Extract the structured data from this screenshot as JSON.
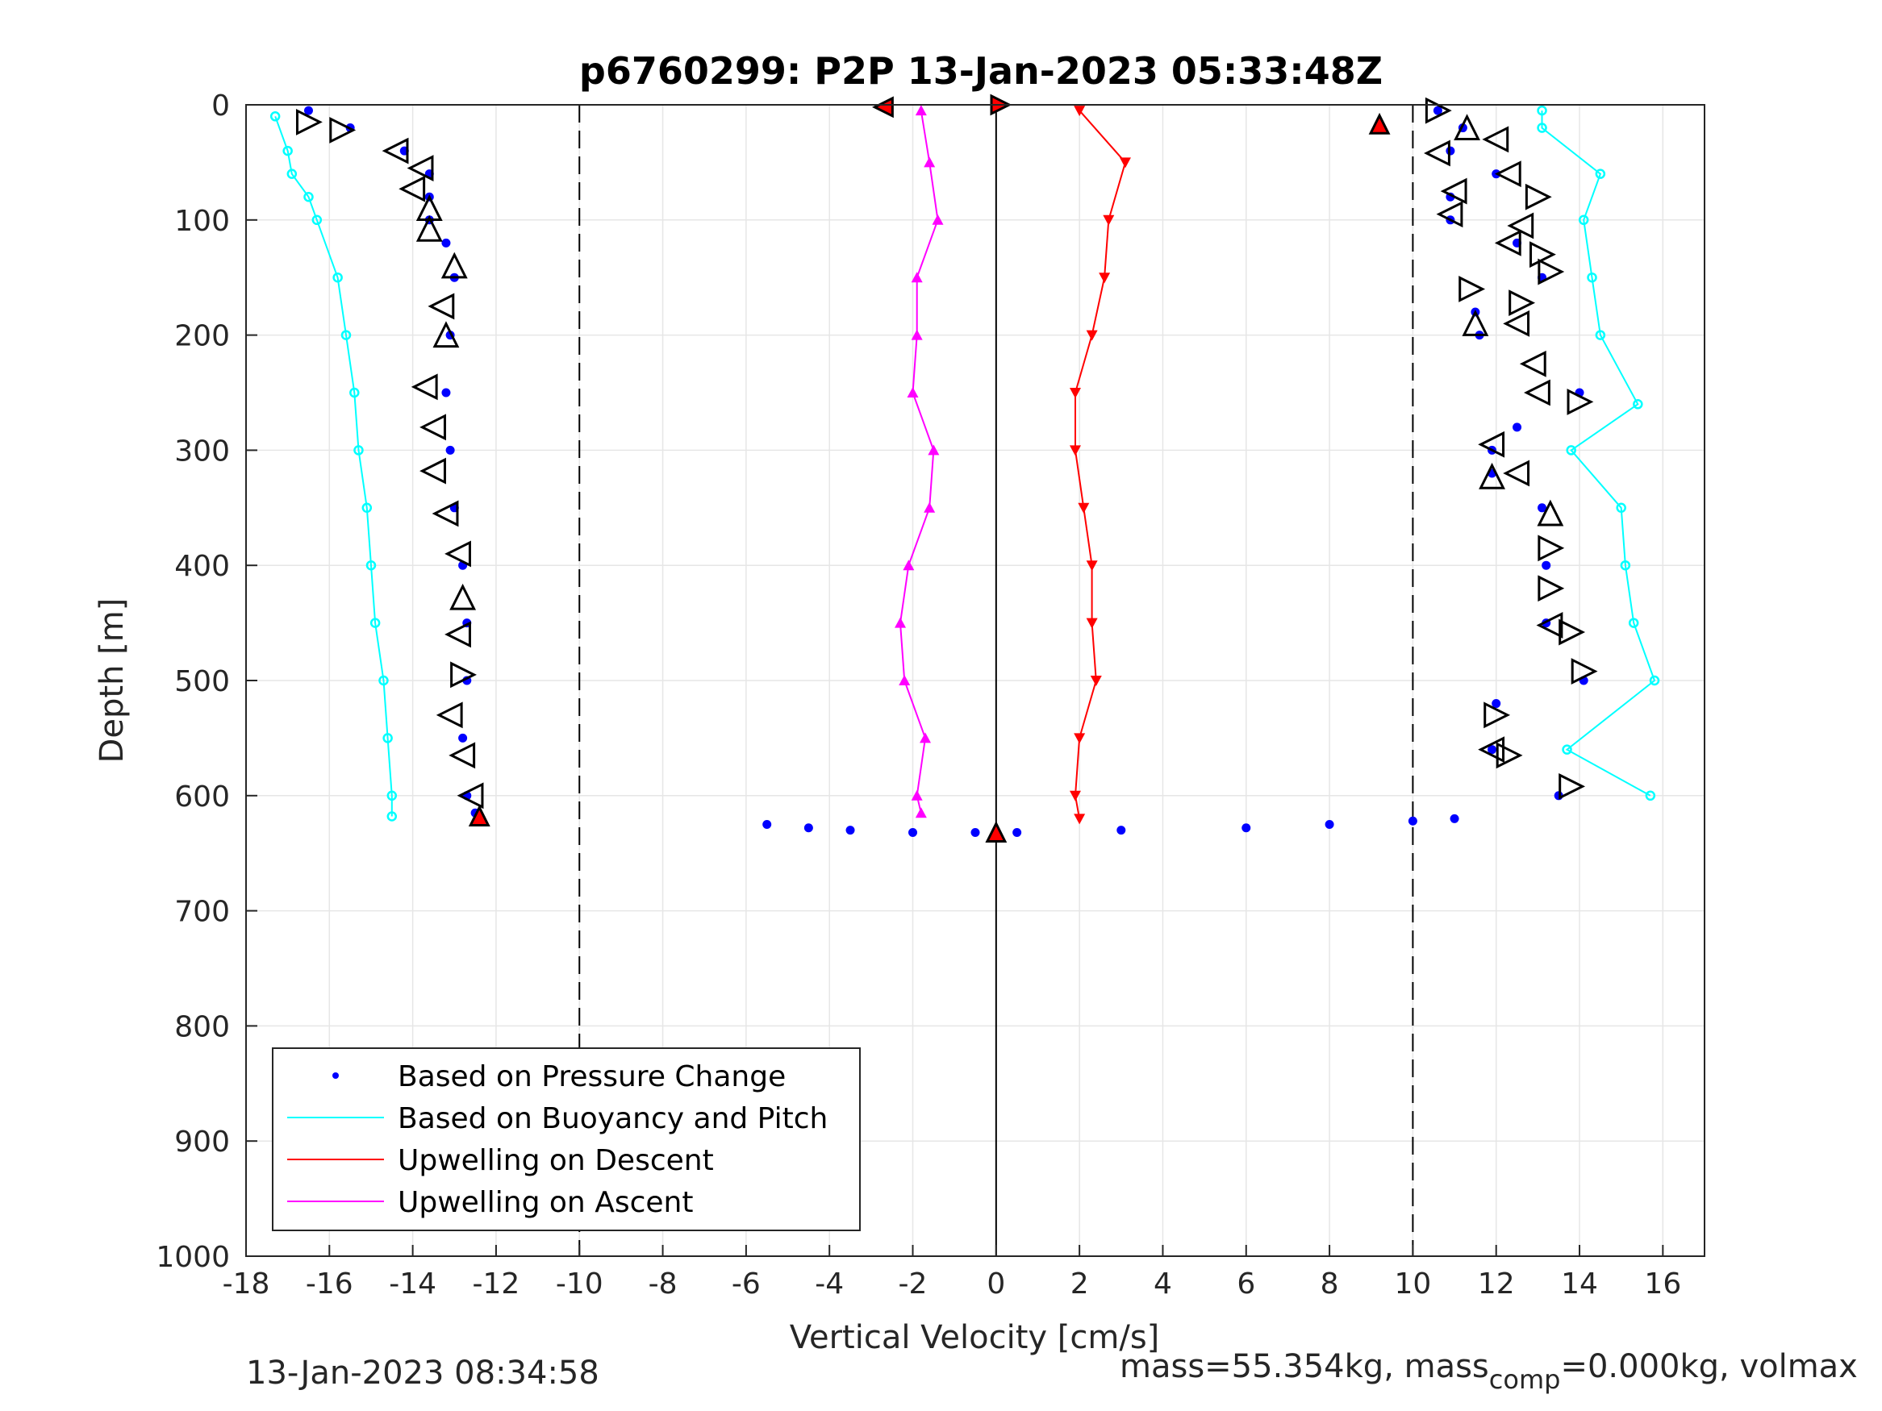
{
  "chart_data": {
    "type": "scatter",
    "title": "p6760299: P2P 13-Jan-2023 05:33:48Z",
    "xlabel": "Vertical Velocity [cm/s]",
    "ylabel": "Depth [m]",
    "xlim": [
      -18,
      17
    ],
    "ylim": [
      0,
      1000
    ],
    "y_reversed": true,
    "xticks": [
      -18,
      -16,
      -14,
      -12,
      -10,
      -8,
      -6,
      -4,
      -2,
      0,
      2,
      4,
      6,
      8,
      10,
      12,
      14,
      16
    ],
    "yticks": [
      0,
      100,
      200,
      300,
      400,
      500,
      600,
      700,
      800,
      900,
      1000
    ],
    "grid": true,
    "legend_position": "bottom-left",
    "reference_lines": {
      "dashed_x": [
        -10,
        10
      ],
      "solid_x": [
        0
      ]
    },
    "legend": [
      {
        "label": "Based on Pressure Change",
        "color": "#0000ff",
        "style": "dot"
      },
      {
        "label": "Based on Buoyancy and Pitch",
        "color": "#00ffff",
        "style": "line"
      },
      {
        "label": "Upwelling on Descent",
        "color": "#ff0000",
        "style": "line"
      },
      {
        "label": "Upwelling on Ascent",
        "color": "#ff00ff",
        "style": "line"
      }
    ],
    "series": [
      {
        "name": "Based on Pressure Change (descent)",
        "color": "#0000ff",
        "depth": [
          5,
          20,
          40,
          60,
          80,
          100,
          120,
          150,
          200,
          250,
          300,
          350,
          400,
          450,
          500,
          550,
          600,
          615
        ],
        "velocity": [
          -16.5,
          -15.5,
          -14.2,
          -13.6,
          -13.6,
          -13.6,
          -13.2,
          -13.0,
          -13.1,
          -13.2,
          -13.1,
          -13.0,
          -12.8,
          -12.7,
          -12.7,
          -12.8,
          -12.7,
          -12.5
        ]
      },
      {
        "name": "Based on Buoyancy and Pitch (descent)",
        "color": "#00ffff",
        "depth": [
          10,
          40,
          60,
          80,
          100,
          150,
          200,
          250,
          300,
          350,
          400,
          450,
          500,
          550,
          600,
          618
        ],
        "velocity": [
          -17.3,
          -17.0,
          -16.9,
          -16.5,
          -16.3,
          -15.8,
          -15.6,
          -15.4,
          -15.3,
          -15.1,
          -15.0,
          -14.9,
          -14.7,
          -14.6,
          -14.5,
          -14.5
        ]
      },
      {
        "name": "Based on Pressure Change (ascent)",
        "color": "#0000ff",
        "depth": [
          600,
          560,
          520,
          500,
          450,
          400,
          350,
          320,
          300,
          280,
          250,
          200,
          180,
          150,
          120,
          100,
          80,
          60,
          40,
          20,
          5
        ],
        "velocity": [
          13.5,
          11.9,
          12.0,
          14.1,
          13.2,
          13.2,
          13.1,
          11.9,
          11.9,
          12.5,
          14.0,
          11.6,
          11.5,
          13.1,
          12.5,
          10.9,
          10.9,
          12.0,
          10.9,
          11.2,
          10.6
        ]
      },
      {
        "name": "Based on Buoyancy and Pitch (ascent)",
        "color": "#00ffff",
        "depth": [
          600,
          560,
          500,
          450,
          400,
          350,
          300,
          260,
          200,
          150,
          100,
          60,
          20,
          5
        ],
        "velocity": [
          15.7,
          13.7,
          15.8,
          15.3,
          15.1,
          15.0,
          13.8,
          15.4,
          14.5,
          14.3,
          14.1,
          14.5,
          13.1,
          13.1
        ]
      },
      {
        "name": "Upwelling on Descent",
        "color": "#ff0000",
        "depth": [
          5,
          50,
          100,
          150,
          200,
          250,
          300,
          350,
          400,
          450,
          500,
          550,
          600,
          620
        ],
        "velocity": [
          2.0,
          3.1,
          2.7,
          2.6,
          2.3,
          1.9,
          1.9,
          2.1,
          2.3,
          2.3,
          2.4,
          2.0,
          1.9,
          2.0
        ]
      },
      {
        "name": "Upwelling on Ascent",
        "color": "#ff00ff",
        "depth": [
          5,
          50,
          100,
          150,
          200,
          250,
          300,
          350,
          400,
          450,
          500,
          550,
          600,
          615
        ],
        "velocity": [
          -1.8,
          -1.6,
          -1.4,
          -1.9,
          -1.9,
          -2.0,
          -1.5,
          -1.6,
          -2.1,
          -2.3,
          -2.2,
          -1.7,
          -1.9,
          -1.8
        ]
      },
      {
        "name": "Turnaround at depth (pressure change)",
        "color": "#0000ff",
        "depth": [
          625,
          628,
          630,
          632,
          632,
          632,
          630,
          628,
          625,
          622,
          620
        ],
        "velocity": [
          -5.5,
          -4.5,
          -3.5,
          -2.0,
          -0.5,
          0.5,
          3.0,
          6.0,
          8.0,
          10.0,
          11.0
        ]
      }
    ],
    "markers": [
      {
        "name": "start-descent",
        "velocity": -2.7,
        "depth": 2,
        "shape": "triangle-left",
        "fill": "#ff0000"
      },
      {
        "name": "start-ascent",
        "velocity": 0.1,
        "depth": 0,
        "shape": "triangle-right",
        "fill": "#ff0000"
      },
      {
        "name": "surface-end",
        "velocity": 9.2,
        "depth": 17,
        "shape": "triangle-up",
        "fill": "#ff0000"
      },
      {
        "name": "bottom-a",
        "velocity": -12.4,
        "depth": 618,
        "shape": "triangle-up",
        "fill": "#ff0000"
      },
      {
        "name": "bottom-b",
        "velocity": 0.0,
        "depth": 632,
        "shape": "triangle-up",
        "fill": "#ff0000"
      }
    ],
    "pitch_markers_descent": [
      {
        "velocity": -16.5,
        "depth": 15,
        "dir": "right"
      },
      {
        "velocity": -15.7,
        "depth": 22,
        "dir": "right"
      },
      {
        "velocity": -14.4,
        "depth": 40,
        "dir": "left"
      },
      {
        "velocity": -13.8,
        "depth": 55,
        "dir": "left"
      },
      {
        "velocity": -14.0,
        "depth": 73,
        "dir": "left"
      },
      {
        "velocity": -13.6,
        "depth": 90,
        "dir": "up"
      },
      {
        "velocity": -13.6,
        "depth": 108,
        "dir": "up"
      },
      {
        "velocity": -13.0,
        "depth": 140,
        "dir": "up"
      },
      {
        "velocity": -13.3,
        "depth": 175,
        "dir": "left"
      },
      {
        "velocity": -13.2,
        "depth": 200,
        "dir": "up"
      },
      {
        "velocity": -13.7,
        "depth": 245,
        "dir": "left"
      },
      {
        "velocity": -13.5,
        "depth": 280,
        "dir": "left"
      },
      {
        "velocity": -13.5,
        "depth": 318,
        "dir": "left"
      },
      {
        "velocity": -13.2,
        "depth": 355,
        "dir": "left"
      },
      {
        "velocity": -12.9,
        "depth": 390,
        "dir": "left"
      },
      {
        "velocity": -12.8,
        "depth": 428,
        "dir": "up"
      },
      {
        "velocity": -12.9,
        "depth": 460,
        "dir": "left"
      },
      {
        "velocity": -12.8,
        "depth": 495,
        "dir": "right"
      },
      {
        "velocity": -13.1,
        "depth": 530,
        "dir": "left"
      },
      {
        "velocity": -12.8,
        "depth": 565,
        "dir": "left"
      },
      {
        "velocity": -12.6,
        "depth": 600,
        "dir": "left"
      }
    ],
    "pitch_markers_ascent": [
      {
        "velocity": 10.6,
        "depth": 5,
        "dir": "right"
      },
      {
        "velocity": 11.3,
        "depth": 20,
        "dir": "up"
      },
      {
        "velocity": 12.0,
        "depth": 30,
        "dir": "left"
      },
      {
        "velocity": 10.6,
        "depth": 42,
        "dir": "left"
      },
      {
        "velocity": 12.3,
        "depth": 60,
        "dir": "left"
      },
      {
        "velocity": 11.0,
        "depth": 75,
        "dir": "left"
      },
      {
        "velocity": 13.0,
        "depth": 80,
        "dir": "right"
      },
      {
        "velocity": 10.9,
        "depth": 95,
        "dir": "left"
      },
      {
        "velocity": 12.6,
        "depth": 105,
        "dir": "left"
      },
      {
        "velocity": 12.3,
        "depth": 120,
        "dir": "left"
      },
      {
        "velocity": 13.1,
        "depth": 130,
        "dir": "right"
      },
      {
        "velocity": 13.3,
        "depth": 145,
        "dir": "right"
      },
      {
        "velocity": 11.4,
        "depth": 160,
        "dir": "right"
      },
      {
        "velocity": 12.6,
        "depth": 172,
        "dir": "right"
      },
      {
        "velocity": 11.5,
        "depth": 190,
        "dir": "up"
      },
      {
        "velocity": 12.5,
        "depth": 190,
        "dir": "left"
      },
      {
        "velocity": 12.9,
        "depth": 225,
        "dir": "left"
      },
      {
        "velocity": 13.0,
        "depth": 250,
        "dir": "left"
      },
      {
        "velocity": 14.0,
        "depth": 258,
        "dir": "right"
      },
      {
        "velocity": 11.9,
        "depth": 295,
        "dir": "left"
      },
      {
        "velocity": 12.5,
        "depth": 320,
        "dir": "left"
      },
      {
        "velocity": 11.9,
        "depth": 323,
        "dir": "up"
      },
      {
        "velocity": 13.3,
        "depth": 355,
        "dir": "up"
      },
      {
        "velocity": 13.3,
        "depth": 385,
        "dir": "right"
      },
      {
        "velocity": 13.3,
        "depth": 420,
        "dir": "right"
      },
      {
        "velocity": 13.3,
        "depth": 452,
        "dir": "left"
      },
      {
        "velocity": 13.8,
        "depth": 458,
        "dir": "right"
      },
      {
        "velocity": 14.1,
        "depth": 492,
        "dir": "right"
      },
      {
        "velocity": 12.0,
        "depth": 530,
        "dir": "right"
      },
      {
        "velocity": 11.9,
        "depth": 560,
        "dir": "left"
      },
      {
        "velocity": 12.3,
        "depth": 565,
        "dir": "right"
      },
      {
        "velocity": 13.8,
        "depth": 592,
        "dir": "right"
      }
    ]
  },
  "footer": {
    "timestamp": "13-Jan-2023 08:34:58",
    "mass_text": "mass=55.354kg, mass",
    "mass_sub": "comp",
    "mass_rest": "=0.000kg, volmax"
  }
}
